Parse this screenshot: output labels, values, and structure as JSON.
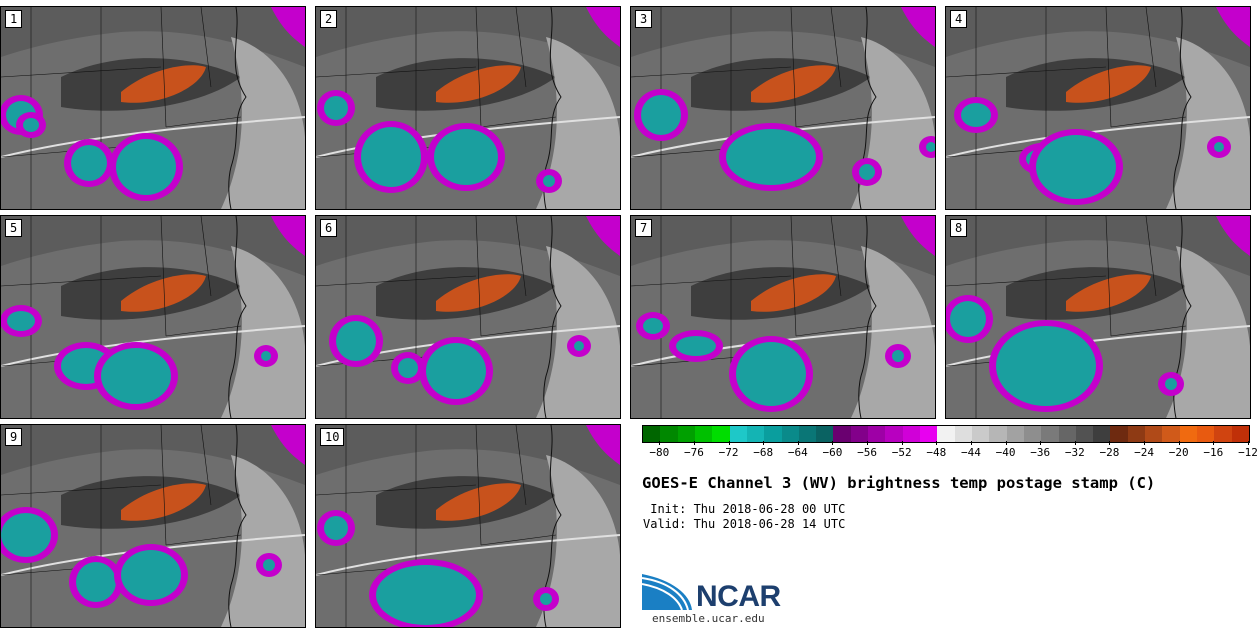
{
  "panels": [
    {
      "label": "1"
    },
    {
      "label": "2"
    },
    {
      "label": "3"
    },
    {
      "label": "4"
    },
    {
      "label": "5"
    },
    {
      "label": "6"
    },
    {
      "label": "7"
    },
    {
      "label": "8"
    },
    {
      "label": "9"
    },
    {
      "label": "10"
    }
  ],
  "colorbar": {
    "colors": [
      "#006600",
      "#008800",
      "#00a000",
      "#00c000",
      "#00dd00",
      "#1ec8c8",
      "#14b4b4",
      "#0a9e9e",
      "#0a8a8a",
      "#0a7676",
      "#0a6262",
      "#6a0070",
      "#82008a",
      "#9e00a6",
      "#b800c0",
      "#d000d8",
      "#e800f0",
      "#f2f2f2",
      "#dedede",
      "#cacaca",
      "#b6b6b6",
      "#a2a2a2",
      "#8e8e8e",
      "#7a7a7a",
      "#666666",
      "#525252",
      "#3e3e3e",
      "#6e2a10",
      "#8e3a14",
      "#b04a18",
      "#d05a1a",
      "#f06a10",
      "#e85a10",
      "#d04410",
      "#c03008"
    ],
    "tick_labels": [
      "−80",
      "−76",
      "−72",
      "−68",
      "−64",
      "−60",
      "−56",
      "−52",
      "−48",
      "−44",
      "−40",
      "−36",
      "−32",
      "−28",
      "−24",
      "−20",
      "−16",
      "−12"
    ]
  },
  "title": "GOES-E Channel 3 (WV) brightness temp postage stamp (C)",
  "init_line": " Init: Thu 2018-06-28 00 UTC",
  "valid_line": "Valid: Thu 2018-06-28 14 UTC",
  "logo": {
    "name": "NCAR",
    "url": "ensemble.ucar.edu"
  }
}
